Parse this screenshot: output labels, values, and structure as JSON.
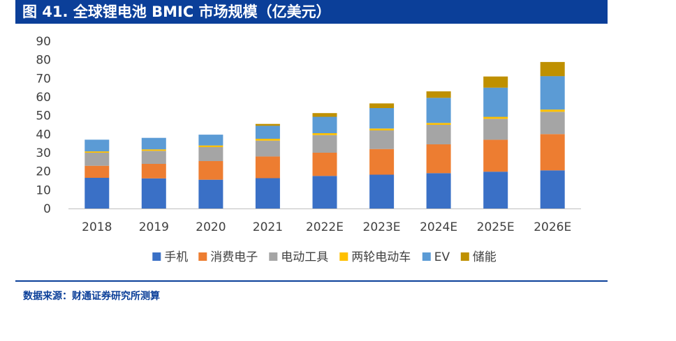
{
  "title": "图 41. 全球锂电池 BMIC 市场规模（亿美元）",
  "source": "数据来源：财通证券研究所测算",
  "chart_data": {
    "type": "bar",
    "stacked": true,
    "title": "图 41. 全球锂电池 BMIC 市场规模（亿美元）",
    "xlabel": "",
    "ylabel": "",
    "ylim": [
      0,
      90
    ],
    "yticks": [
      0,
      10,
      20,
      30,
      40,
      50,
      60,
      70,
      80,
      90
    ],
    "grid": false,
    "legend_position": "bottom",
    "categories": [
      "2018",
      "2019",
      "2020",
      "2021",
      "2022E",
      "2023E",
      "2024E",
      "2025E",
      "2026E"
    ],
    "series": [
      {
        "name": "手机",
        "color": "#3a70c6",
        "values": [
          16.5,
          16.2,
          15.5,
          16.3,
          17.5,
          18.2,
          19.0,
          19.8,
          20.5
        ]
      },
      {
        "name": "消费电子",
        "color": "#ed7d31",
        "values": [
          6.5,
          7.8,
          10.0,
          11.7,
          12.5,
          13.8,
          15.5,
          17.2,
          19.5
        ]
      },
      {
        "name": "电动工具",
        "color": "#a5a5a5",
        "values": [
          7.0,
          7.0,
          7.5,
          8.5,
          9.5,
          10.0,
          10.5,
          11.2,
          12.0
        ]
      },
      {
        "name": "两轮电动车",
        "color": "#ffc000",
        "values": [
          0.7,
          0.8,
          0.9,
          1.0,
          1.0,
          1.0,
          1.0,
          1.1,
          1.2
        ]
      },
      {
        "name": "EV",
        "color": "#5b9bd5",
        "values": [
          6.3,
          6.2,
          5.8,
          7.0,
          8.8,
          11.0,
          13.5,
          15.7,
          18.0
        ]
      },
      {
        "name": "储能",
        "color": "#bf9000",
        "values": [
          0.0,
          0.0,
          0.0,
          1.0,
          2.0,
          2.5,
          3.5,
          6.0,
          7.6
        ]
      }
    ]
  }
}
